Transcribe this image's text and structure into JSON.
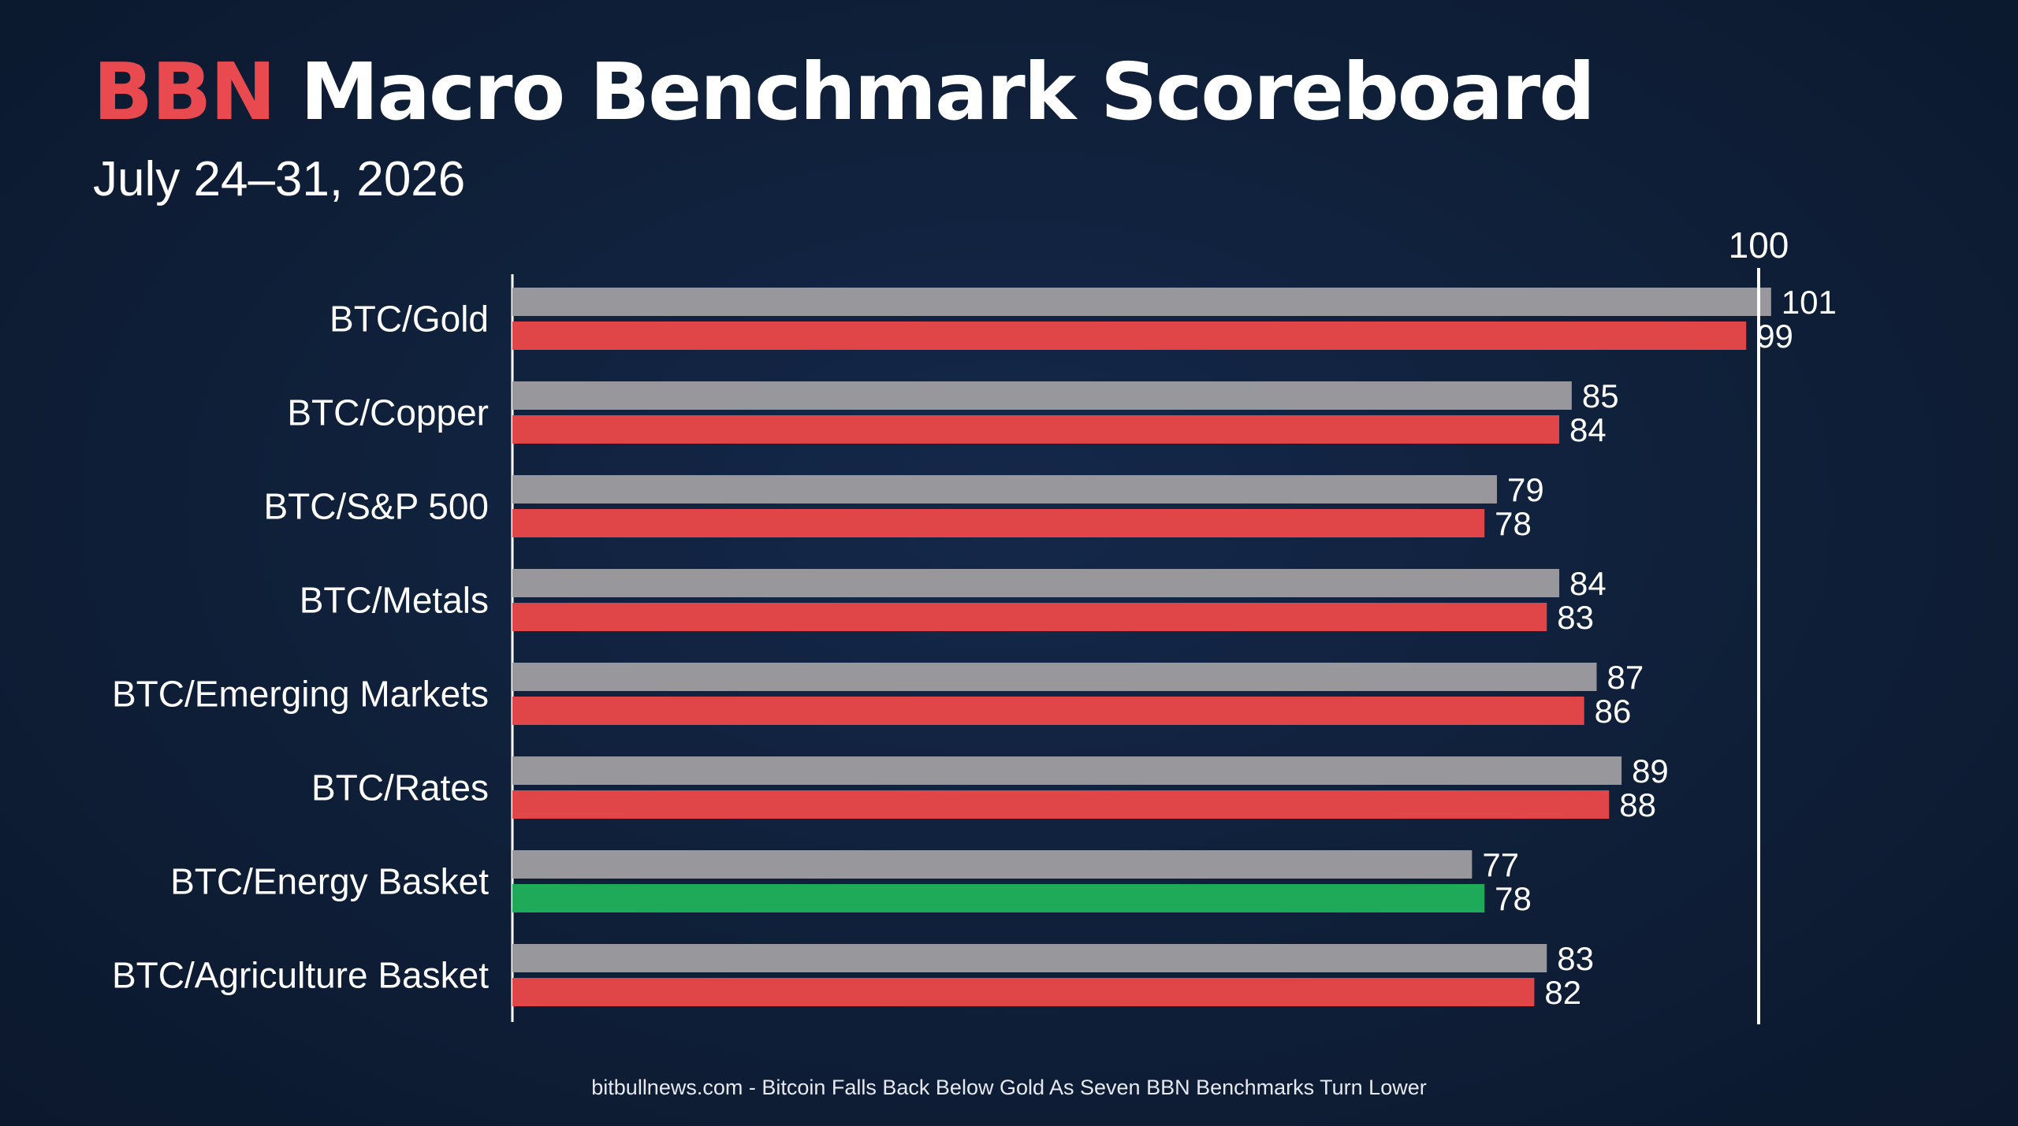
{
  "header": {
    "title_brand": "BBN",
    "title_rest": "Macro Benchmark Scoreboard",
    "subtitle": "July 24–31, 2026"
  },
  "footer": {
    "text": "bitbullnews.com - Bitcoin Falls Back Below Gold As Seven BBN Benchmarks Turn Lower"
  },
  "colors": {
    "background": "#0f1f38",
    "previous_bar": "#97979c",
    "current_down": "#e04547",
    "current_up": "#1faa5a",
    "brand": "#e84a4f",
    "axis": "#ffffff"
  },
  "chart_data": {
    "type": "bar",
    "orientation": "horizontal",
    "categories": [
      "BTC/Gold",
      "BTC/Copper",
      "BTC/S&P 500",
      "BTC/Metals",
      "BTC/Emerging Markets",
      "BTC/Rates",
      "BTC/Energy Basket",
      "BTC/Agriculture Basket"
    ],
    "series": [
      {
        "values": [
          101,
          85,
          79,
          84,
          87,
          89,
          77,
          83
        ]
      },
      {
        "values": [
          99,
          84,
          78,
          83,
          86,
          88,
          78,
          82
        ]
      }
    ],
    "reference_line": {
      "value": 100,
      "label": "100"
    },
    "xlim": [
      0,
      105
    ],
    "grid": false,
    "legend": "none",
    "data_labels": true
  }
}
